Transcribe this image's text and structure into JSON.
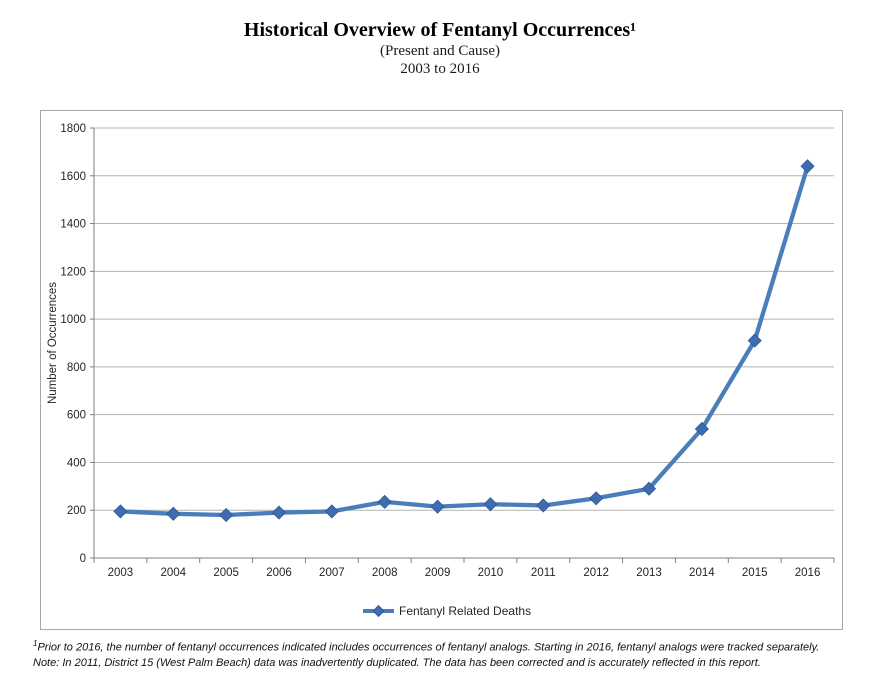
{
  "header": {
    "title": "Historical Overview of Fentanyl Occurrences¹",
    "subtitle1": "(Present and Cause)",
    "subtitle2": "2003 to 2016"
  },
  "chart_data": {
    "type": "line",
    "title": "Historical Overview of Fentanyl Occurrences",
    "xlabel": "",
    "ylabel": "Number of Occurrences",
    "ylim": [
      0,
      1800
    ],
    "ytick_step": 200,
    "grid": true,
    "legend_position": "bottom-center",
    "categories": [
      "2003",
      "2004",
      "2005",
      "2006",
      "2007",
      "2008",
      "2009",
      "2010",
      "2011",
      "2012",
      "2013",
      "2014",
      "2015",
      "2016"
    ],
    "series": [
      {
        "name": "Fentanyl Related Deaths",
        "marker": "diamond",
        "values": [
          195,
          185,
          180,
          190,
          195,
          235,
          215,
          225,
          220,
          250,
          290,
          540,
          910,
          1640
        ]
      }
    ]
  },
  "footnotes": {
    "sup1": "1",
    "line1": "Prior to 2016, the number of fentanyl occurrences indicated includes occurrences of fentanyl analogs. Starting in 2016, fentanyl analogs were tracked separately.",
    "line2": "Note: In 2011, District 15 (West Palm Beach) data was inadvertently duplicated. The data has been corrected and is accurately reflected in this report."
  },
  "colors": {
    "line": "#4a7ebb",
    "marker_fill": "#3e6cb0",
    "marker_stroke": "#2e5790",
    "grid": "#b3b3b3",
    "axis": "#808080",
    "border": "#a6a6a6",
    "tick_text": "#262626",
    "title_text": "#000000"
  }
}
